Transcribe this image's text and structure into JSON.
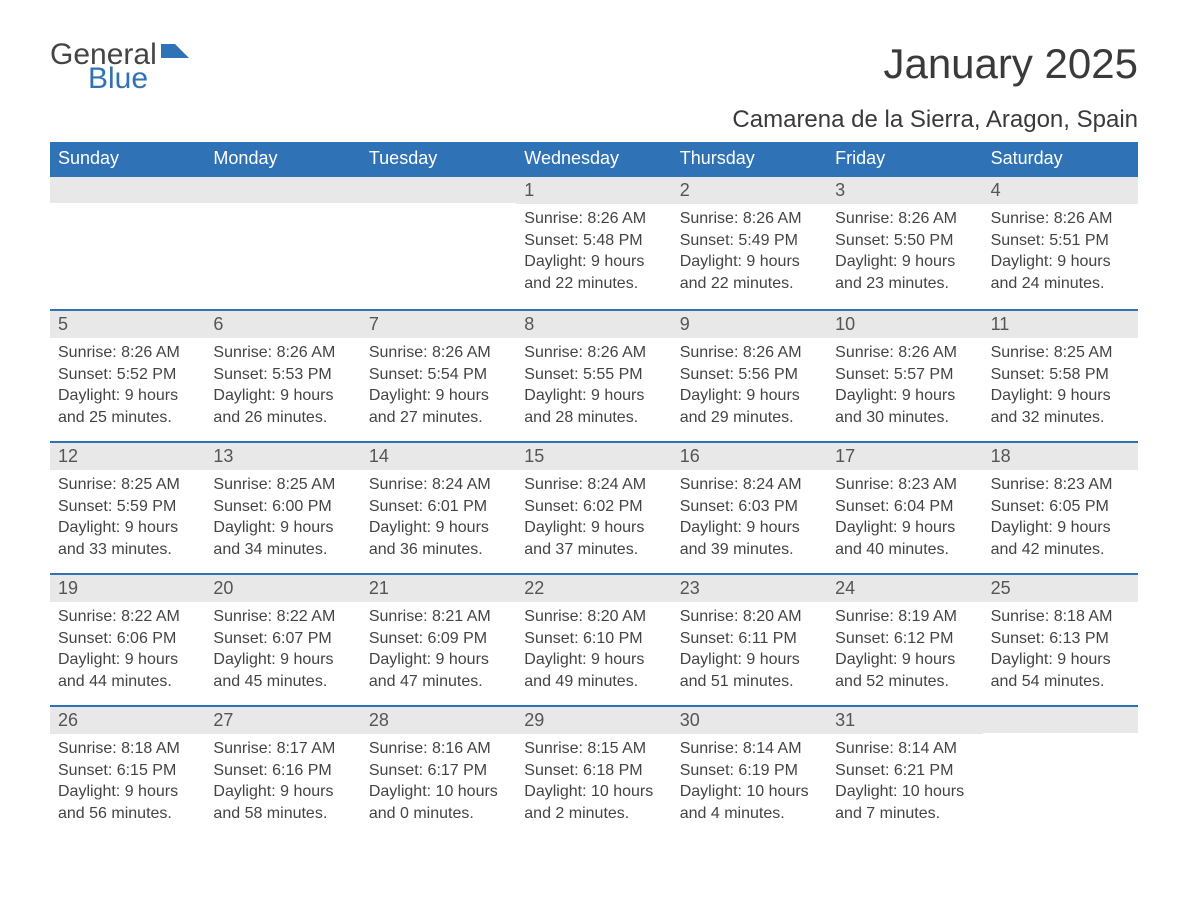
{
  "brand": {
    "general": "General",
    "blue": "Blue"
  },
  "header": {
    "monthTitle": "January 2025",
    "location": "Camarena de la Sierra, Aragon, Spain"
  },
  "colors": {
    "accent": "#2f72b6",
    "dayHeaderBg": "#2f72b6",
    "dayHeaderText": "#ffffff",
    "dayNumBg": "#e8e8e8",
    "bodyText": "#444444",
    "background": "#ffffff"
  },
  "dayNames": [
    "Sunday",
    "Monday",
    "Tuesday",
    "Wednesday",
    "Thursday",
    "Friday",
    "Saturday"
  ],
  "weeks": [
    [
      {
        "day": "",
        "sunrise": "",
        "sunset": "",
        "daylight1": "",
        "daylight2": ""
      },
      {
        "day": "",
        "sunrise": "",
        "sunset": "",
        "daylight1": "",
        "daylight2": ""
      },
      {
        "day": "",
        "sunrise": "",
        "sunset": "",
        "daylight1": "",
        "daylight2": ""
      },
      {
        "day": "1",
        "sunrise": "Sunrise: 8:26 AM",
        "sunset": "Sunset: 5:48 PM",
        "daylight1": "Daylight: 9 hours",
        "daylight2": "and 22 minutes."
      },
      {
        "day": "2",
        "sunrise": "Sunrise: 8:26 AM",
        "sunset": "Sunset: 5:49 PM",
        "daylight1": "Daylight: 9 hours",
        "daylight2": "and 22 minutes."
      },
      {
        "day": "3",
        "sunrise": "Sunrise: 8:26 AM",
        "sunset": "Sunset: 5:50 PM",
        "daylight1": "Daylight: 9 hours",
        "daylight2": "and 23 minutes."
      },
      {
        "day": "4",
        "sunrise": "Sunrise: 8:26 AM",
        "sunset": "Sunset: 5:51 PM",
        "daylight1": "Daylight: 9 hours",
        "daylight2": "and 24 minutes."
      }
    ],
    [
      {
        "day": "5",
        "sunrise": "Sunrise: 8:26 AM",
        "sunset": "Sunset: 5:52 PM",
        "daylight1": "Daylight: 9 hours",
        "daylight2": "and 25 minutes."
      },
      {
        "day": "6",
        "sunrise": "Sunrise: 8:26 AM",
        "sunset": "Sunset: 5:53 PM",
        "daylight1": "Daylight: 9 hours",
        "daylight2": "and 26 minutes."
      },
      {
        "day": "7",
        "sunrise": "Sunrise: 8:26 AM",
        "sunset": "Sunset: 5:54 PM",
        "daylight1": "Daylight: 9 hours",
        "daylight2": "and 27 minutes."
      },
      {
        "day": "8",
        "sunrise": "Sunrise: 8:26 AM",
        "sunset": "Sunset: 5:55 PM",
        "daylight1": "Daylight: 9 hours",
        "daylight2": "and 28 minutes."
      },
      {
        "day": "9",
        "sunrise": "Sunrise: 8:26 AM",
        "sunset": "Sunset: 5:56 PM",
        "daylight1": "Daylight: 9 hours",
        "daylight2": "and 29 minutes."
      },
      {
        "day": "10",
        "sunrise": "Sunrise: 8:26 AM",
        "sunset": "Sunset: 5:57 PM",
        "daylight1": "Daylight: 9 hours",
        "daylight2": "and 30 minutes."
      },
      {
        "day": "11",
        "sunrise": "Sunrise: 8:25 AM",
        "sunset": "Sunset: 5:58 PM",
        "daylight1": "Daylight: 9 hours",
        "daylight2": "and 32 minutes."
      }
    ],
    [
      {
        "day": "12",
        "sunrise": "Sunrise: 8:25 AM",
        "sunset": "Sunset: 5:59 PM",
        "daylight1": "Daylight: 9 hours",
        "daylight2": "and 33 minutes."
      },
      {
        "day": "13",
        "sunrise": "Sunrise: 8:25 AM",
        "sunset": "Sunset: 6:00 PM",
        "daylight1": "Daylight: 9 hours",
        "daylight2": "and 34 minutes."
      },
      {
        "day": "14",
        "sunrise": "Sunrise: 8:24 AM",
        "sunset": "Sunset: 6:01 PM",
        "daylight1": "Daylight: 9 hours",
        "daylight2": "and 36 minutes."
      },
      {
        "day": "15",
        "sunrise": "Sunrise: 8:24 AM",
        "sunset": "Sunset: 6:02 PM",
        "daylight1": "Daylight: 9 hours",
        "daylight2": "and 37 minutes."
      },
      {
        "day": "16",
        "sunrise": "Sunrise: 8:24 AM",
        "sunset": "Sunset: 6:03 PM",
        "daylight1": "Daylight: 9 hours",
        "daylight2": "and 39 minutes."
      },
      {
        "day": "17",
        "sunrise": "Sunrise: 8:23 AM",
        "sunset": "Sunset: 6:04 PM",
        "daylight1": "Daylight: 9 hours",
        "daylight2": "and 40 minutes."
      },
      {
        "day": "18",
        "sunrise": "Sunrise: 8:23 AM",
        "sunset": "Sunset: 6:05 PM",
        "daylight1": "Daylight: 9 hours",
        "daylight2": "and 42 minutes."
      }
    ],
    [
      {
        "day": "19",
        "sunrise": "Sunrise: 8:22 AM",
        "sunset": "Sunset: 6:06 PM",
        "daylight1": "Daylight: 9 hours",
        "daylight2": "and 44 minutes."
      },
      {
        "day": "20",
        "sunrise": "Sunrise: 8:22 AM",
        "sunset": "Sunset: 6:07 PM",
        "daylight1": "Daylight: 9 hours",
        "daylight2": "and 45 minutes."
      },
      {
        "day": "21",
        "sunrise": "Sunrise: 8:21 AM",
        "sunset": "Sunset: 6:09 PM",
        "daylight1": "Daylight: 9 hours",
        "daylight2": "and 47 minutes."
      },
      {
        "day": "22",
        "sunrise": "Sunrise: 8:20 AM",
        "sunset": "Sunset: 6:10 PM",
        "daylight1": "Daylight: 9 hours",
        "daylight2": "and 49 minutes."
      },
      {
        "day": "23",
        "sunrise": "Sunrise: 8:20 AM",
        "sunset": "Sunset: 6:11 PM",
        "daylight1": "Daylight: 9 hours",
        "daylight2": "and 51 minutes."
      },
      {
        "day": "24",
        "sunrise": "Sunrise: 8:19 AM",
        "sunset": "Sunset: 6:12 PM",
        "daylight1": "Daylight: 9 hours",
        "daylight2": "and 52 minutes."
      },
      {
        "day": "25",
        "sunrise": "Sunrise: 8:18 AM",
        "sunset": "Sunset: 6:13 PM",
        "daylight1": "Daylight: 9 hours",
        "daylight2": "and 54 minutes."
      }
    ],
    [
      {
        "day": "26",
        "sunrise": "Sunrise: 8:18 AM",
        "sunset": "Sunset: 6:15 PM",
        "daylight1": "Daylight: 9 hours",
        "daylight2": "and 56 minutes."
      },
      {
        "day": "27",
        "sunrise": "Sunrise: 8:17 AM",
        "sunset": "Sunset: 6:16 PM",
        "daylight1": "Daylight: 9 hours",
        "daylight2": "and 58 minutes."
      },
      {
        "day": "28",
        "sunrise": "Sunrise: 8:16 AM",
        "sunset": "Sunset: 6:17 PM",
        "daylight1": "Daylight: 10 hours",
        "daylight2": "and 0 minutes."
      },
      {
        "day": "29",
        "sunrise": "Sunrise: 8:15 AM",
        "sunset": "Sunset: 6:18 PM",
        "daylight1": "Daylight: 10 hours",
        "daylight2": "and 2 minutes."
      },
      {
        "day": "30",
        "sunrise": "Sunrise: 8:14 AM",
        "sunset": "Sunset: 6:19 PM",
        "daylight1": "Daylight: 10 hours",
        "daylight2": "and 4 minutes."
      },
      {
        "day": "31",
        "sunrise": "Sunrise: 8:14 AM",
        "sunset": "Sunset: 6:21 PM",
        "daylight1": "Daylight: 10 hours",
        "daylight2": "and 7 minutes."
      },
      {
        "day": "",
        "sunrise": "",
        "sunset": "",
        "daylight1": "",
        "daylight2": ""
      }
    ]
  ]
}
